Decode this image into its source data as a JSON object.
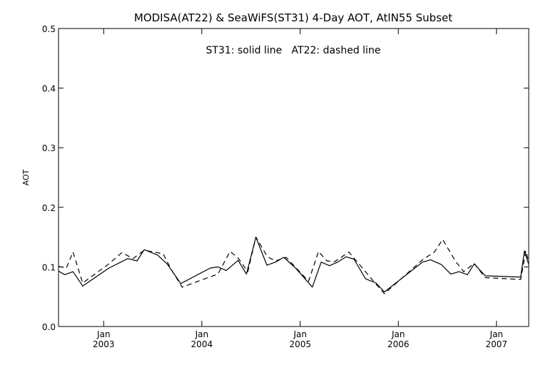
{
  "chart_data": {
    "type": "line",
    "title": "MODISA(AT22) & SeaWiFS(ST31) 4-Day AOT, AtlN55 Subset",
    "annotation": "ST31: solid line   AT22: dashed line",
    "ylabel": "AOT",
    "xlabel": "",
    "ylim": [
      0.0,
      0.5
    ],
    "yticks": [
      "0.0",
      "0.1",
      "0.2",
      "0.3",
      "0.4",
      "0.5"
    ],
    "xlim": [
      "2002-07-17",
      "2007-05-01"
    ],
    "xticks": [
      {
        "date": "2003-01-01",
        "month": "Jan",
        "year": "2003"
      },
      {
        "date": "2004-01-01",
        "month": "Jan",
        "year": "2004"
      },
      {
        "date": "2005-01-01",
        "month": "Jan",
        "year": "2005"
      },
      {
        "date": "2006-01-01",
        "month": "Jan",
        "year": "2006"
      },
      {
        "date": "2007-01-01",
        "month": "Jan",
        "year": "2007"
      }
    ],
    "grid": false,
    "series": [
      {
        "name": "ST31",
        "style": "solid",
        "color": "#000000",
        "points": [
          [
            "2002-07-17",
            0.093
          ],
          [
            "2002-08-09",
            0.087
          ],
          [
            "2002-09-09",
            0.092
          ],
          [
            "2002-10-15",
            0.068
          ],
          [
            "2003-01-20",
            0.098
          ],
          [
            "2003-04-01",
            0.114
          ],
          [
            "2003-05-05",
            0.11
          ],
          [
            "2003-06-01",
            0.129
          ],
          [
            "2003-07-20",
            0.12
          ],
          [
            "2003-08-25",
            0.105
          ],
          [
            "2003-10-15",
            0.072
          ],
          [
            "2004-02-01",
            0.098
          ],
          [
            "2004-03-01",
            0.1
          ],
          [
            "2004-04-01",
            0.094
          ],
          [
            "2004-05-15",
            0.111
          ],
          [
            "2004-06-15",
            0.088
          ],
          [
            "2004-07-20",
            0.15
          ],
          [
            "2004-08-30",
            0.103
          ],
          [
            "2004-10-01",
            0.108
          ],
          [
            "2004-11-01",
            0.116
          ],
          [
            "2004-12-15",
            0.098
          ],
          [
            "2005-02-15",
            0.066
          ],
          [
            "2005-03-20",
            0.108
          ],
          [
            "2005-04-20",
            0.102
          ],
          [
            "2005-05-20",
            0.108
          ],
          [
            "2005-06-20",
            0.117
          ],
          [
            "2005-07-20",
            0.113
          ],
          [
            "2005-09-01",
            0.08
          ],
          [
            "2005-10-10",
            0.073
          ],
          [
            "2005-11-10",
            0.058
          ],
          [
            "2006-04-01",
            0.108
          ],
          [
            "2006-05-01",
            0.112
          ],
          [
            "2006-06-10",
            0.104
          ],
          [
            "2006-07-15",
            0.088
          ],
          [
            "2006-08-15",
            0.092
          ],
          [
            "2006-09-15",
            0.087
          ],
          [
            "2006-10-10",
            0.105
          ],
          [
            "2006-11-20",
            0.085
          ],
          [
            "2007-04-01",
            0.083
          ],
          [
            "2007-04-15",
            0.127
          ],
          [
            "2007-05-01",
            0.104
          ]
        ]
      },
      {
        "name": "AT22",
        "style": "dashed",
        "color": "#000000",
        "points": [
          [
            "2002-07-17",
            0.101
          ],
          [
            "2002-08-15",
            0.098
          ],
          [
            "2002-09-09",
            0.125
          ],
          [
            "2002-10-15",
            0.073
          ],
          [
            "2003-01-20",
            0.105
          ],
          [
            "2003-03-10",
            0.124
          ],
          [
            "2003-04-20",
            0.114
          ],
          [
            "2003-06-01",
            0.128
          ],
          [
            "2003-08-10",
            0.122
          ],
          [
            "2003-09-10",
            0.095
          ],
          [
            "2003-10-20",
            0.066
          ],
          [
            "2004-03-01",
            0.088
          ],
          [
            "2004-04-15",
            0.126
          ],
          [
            "2004-05-15",
            0.115
          ],
          [
            "2004-06-20",
            0.092
          ],
          [
            "2004-07-20",
            0.15
          ],
          [
            "2004-09-01",
            0.117
          ],
          [
            "2004-10-01",
            0.11
          ],
          [
            "2004-11-10",
            0.116
          ],
          [
            "2005-02-01",
            0.076
          ],
          [
            "2005-03-10",
            0.126
          ],
          [
            "2005-04-10",
            0.11
          ],
          [
            "2005-05-10",
            0.109
          ],
          [
            "2005-07-01",
            0.125
          ],
          [
            "2005-09-10",
            0.087
          ],
          [
            "2005-11-10",
            0.055
          ],
          [
            "2006-04-01",
            0.112
          ],
          [
            "2006-05-15",
            0.125
          ],
          [
            "2006-06-15",
            0.146
          ],
          [
            "2006-08-01",
            0.11
          ],
          [
            "2006-09-01",
            0.092
          ],
          [
            "2006-10-10",
            0.106
          ],
          [
            "2006-11-20",
            0.082
          ],
          [
            "2007-04-01",
            0.079
          ],
          [
            "2007-04-20",
            0.127
          ],
          [
            "2007-05-01",
            0.108
          ]
        ]
      }
    ]
  }
}
